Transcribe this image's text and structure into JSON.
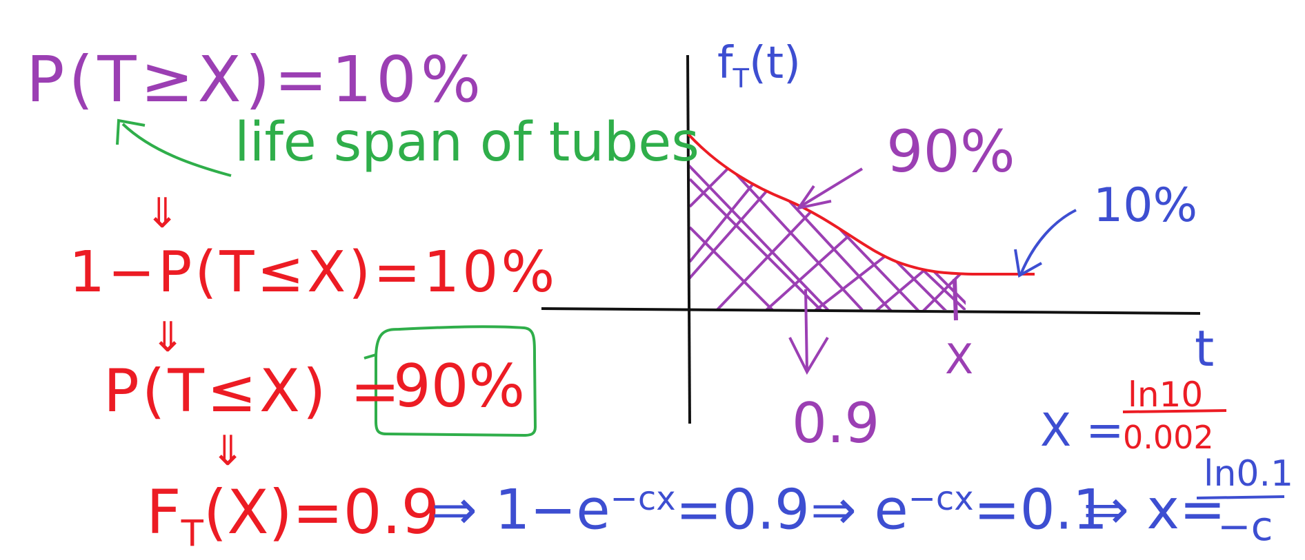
{
  "colors": {
    "purple": "#9b3fb3",
    "green": "#2fae4a",
    "red": "#ec1c24",
    "blue": "#3d4ed1",
    "black": "#111111"
  },
  "left": {
    "eq1": "P(T≥X)=10%",
    "annotation": "life span of tubes",
    "arrow_glyph": "⇓",
    "eq2": "1−P(T≤X)=10%",
    "eq3_left": "P(T≤X) =",
    "eq3_boxed": "90%"
  },
  "bottom": {
    "F_symbol": "F",
    "F_sub": "T",
    "F_rest": "(X)=0.9",
    "step1_arrow": "⇒",
    "step1_prefix": "1−e",
    "step1_exp": "−cx",
    "step1_suffix": "=0.9",
    "step2_arrow": "⇒",
    "step2_prefix": "e",
    "step2_exp": "−cx",
    "step2_suffix": "=0.1",
    "step3_arrow": "⇒",
    "step3_prefix": "x=",
    "frac_num": "ln0.1",
    "frac_den": "−c"
  },
  "graph": {
    "y_label_f": "f",
    "y_label_sub": "T",
    "y_label_rest": "(t)",
    "x_axis_label": "t",
    "label_90": "90%",
    "label_10": "10%",
    "label_0_9": "0.9",
    "tick_x": "X",
    "result_lhs": "X =",
    "result_num": "ln10",
    "result_den": "0.002"
  },
  "icons": [
    "down-double-arrow-icon",
    "curved-arrow-icon",
    "hatch-shading"
  ]
}
